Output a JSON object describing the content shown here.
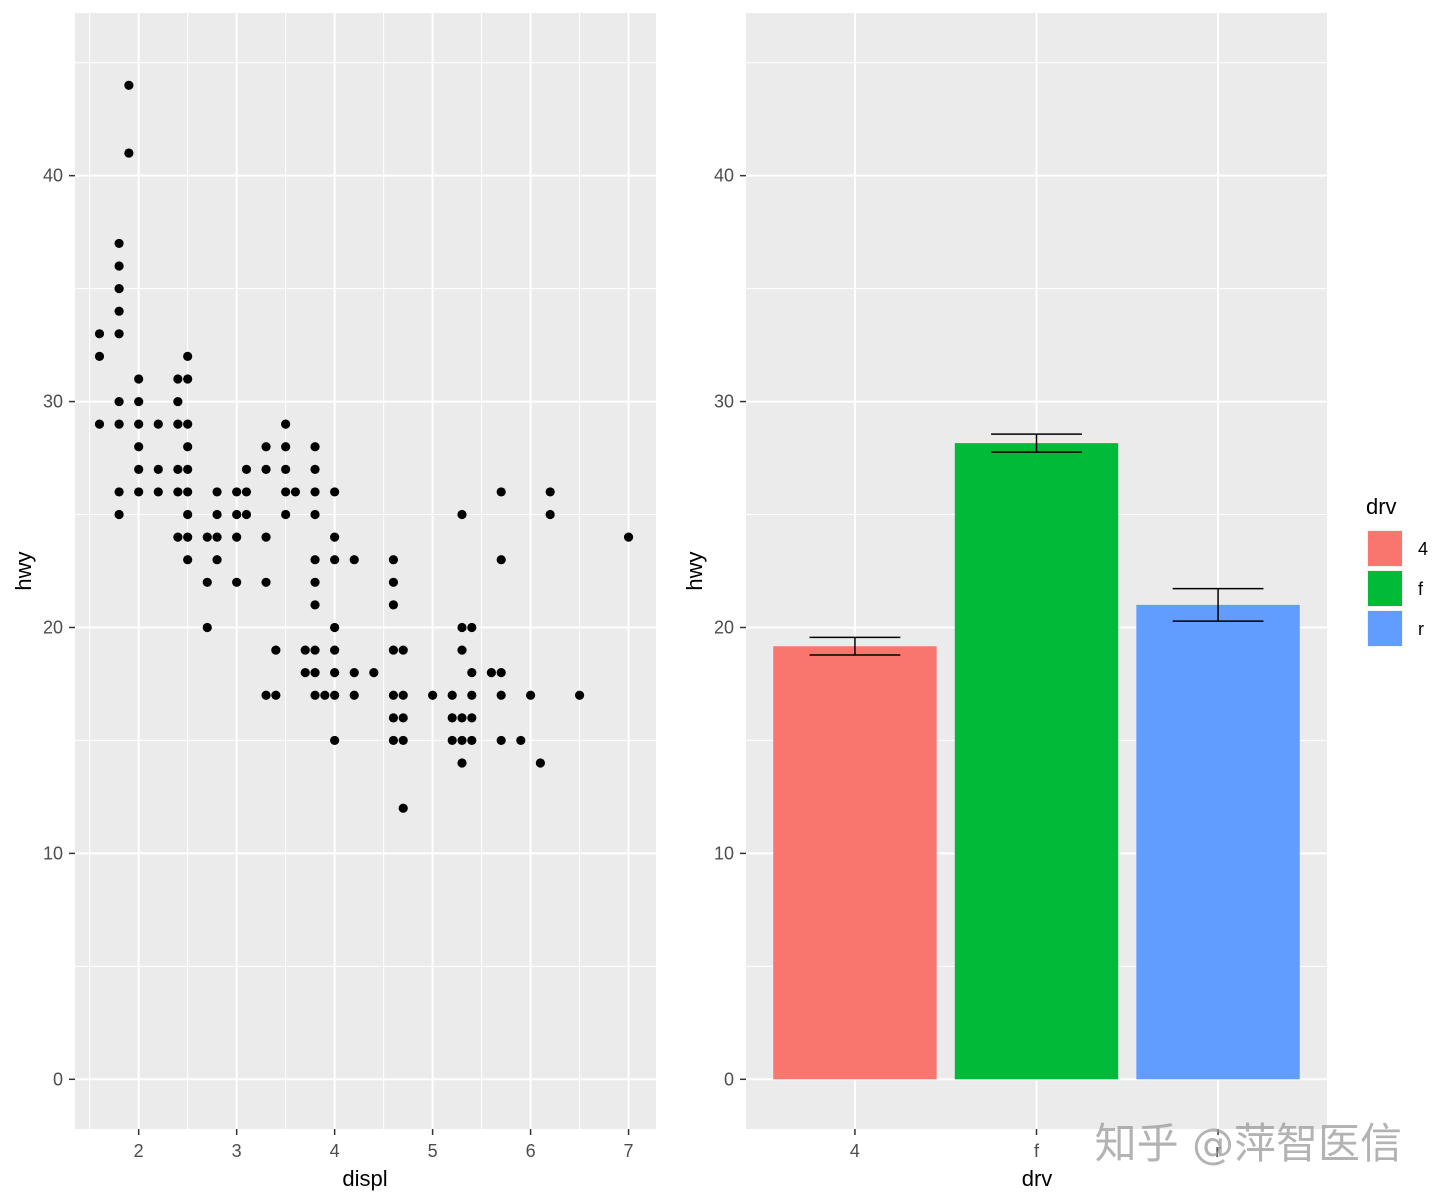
{
  "watermark": "知乎 @萍智医信",
  "chart_data": [
    {
      "type": "scatter",
      "xlabel": "displ",
      "ylabel": "hwy",
      "xlim": [
        1.35,
        7.28
      ],
      "ylim": [
        -2.2,
        47.2
      ],
      "xticks": [
        2,
        3,
        4,
        5,
        6,
        7
      ],
      "yticks": [
        0,
        10,
        20,
        30,
        40
      ],
      "grid": true,
      "point_color": "#000000",
      "points": [
        [
          1.9,
          44
        ],
        [
          1.9,
          41
        ],
        [
          1.8,
          37
        ],
        [
          1.8,
          36
        ],
        [
          1.8,
          35
        ],
        [
          1.8,
          34
        ],
        [
          1.8,
          33
        ],
        [
          1.8,
          30
        ],
        [
          1.8,
          29
        ],
        [
          1.8,
          26
        ],
        [
          1.8,
          25
        ],
        [
          1.6,
          33
        ],
        [
          1.6,
          32
        ],
        [
          1.6,
          29
        ],
        [
          2.0,
          31
        ],
        [
          2.0,
          30
        ],
        [
          2.0,
          29
        ],
        [
          2.0,
          28
        ],
        [
          2.0,
          27
        ],
        [
          2.0,
          26
        ],
        [
          2.2,
          29
        ],
        [
          2.2,
          27
        ],
        [
          2.2,
          26
        ],
        [
          2.4,
          31
        ],
        [
          2.4,
          30
        ],
        [
          2.4,
          29
        ],
        [
          2.4,
          27
        ],
        [
          2.4,
          26
        ],
        [
          2.4,
          24
        ],
        [
          2.5,
          32
        ],
        [
          2.5,
          31
        ],
        [
          2.5,
          29
        ],
        [
          2.5,
          28
        ],
        [
          2.5,
          27
        ],
        [
          2.5,
          26
        ],
        [
          2.5,
          25
        ],
        [
          2.5,
          24
        ],
        [
          2.5,
          23
        ],
        [
          2.7,
          24
        ],
        [
          2.7,
          22
        ],
        [
          2.7,
          20
        ],
        [
          2.8,
          26
        ],
        [
          2.8,
          25
        ],
        [
          2.8,
          24
        ],
        [
          2.8,
          23
        ],
        [
          3.0,
          26
        ],
        [
          3.0,
          25
        ],
        [
          3.0,
          24
        ],
        [
          3.0,
          22
        ],
        [
          3.1,
          27
        ],
        [
          3.1,
          26
        ],
        [
          3.1,
          25
        ],
        [
          3.3,
          28
        ],
        [
          3.3,
          27
        ],
        [
          3.3,
          24
        ],
        [
          3.3,
          22
        ],
        [
          3.3,
          17
        ],
        [
          3.4,
          19
        ],
        [
          3.4,
          17
        ],
        [
          3.5,
          29
        ],
        [
          3.5,
          28
        ],
        [
          3.5,
          27
        ],
        [
          3.5,
          26
        ],
        [
          3.5,
          25
        ],
        [
          3.6,
          26
        ],
        [
          3.7,
          19
        ],
        [
          3.7,
          18
        ],
        [
          3.8,
          28
        ],
        [
          3.8,
          27
        ],
        [
          3.8,
          26
        ],
        [
          3.8,
          25
        ],
        [
          3.8,
          23
        ],
        [
          3.8,
          22
        ],
        [
          3.8,
          21
        ],
        [
          3.8,
          19
        ],
        [
          3.8,
          18
        ],
        [
          3.8,
          17
        ],
        [
          3.9,
          17
        ],
        [
          4.0,
          26
        ],
        [
          4.0,
          24
        ],
        [
          4.0,
          23
        ],
        [
          4.0,
          20
        ],
        [
          4.0,
          19
        ],
        [
          4.0,
          18
        ],
        [
          4.0,
          17
        ],
        [
          4.0,
          15
        ],
        [
          4.2,
          23
        ],
        [
          4.2,
          18
        ],
        [
          4.2,
          17
        ],
        [
          4.4,
          18
        ],
        [
          4.6,
          23
        ],
        [
          4.6,
          22
        ],
        [
          4.6,
          21
        ],
        [
          4.6,
          19
        ],
        [
          4.6,
          17
        ],
        [
          4.6,
          16
        ],
        [
          4.6,
          15
        ],
        [
          4.7,
          19
        ],
        [
          4.7,
          17
        ],
        [
          4.7,
          16
        ],
        [
          4.7,
          15
        ],
        [
          4.7,
          12
        ],
        [
          5.0,
          17
        ],
        [
          5.2,
          17
        ],
        [
          5.2,
          16
        ],
        [
          5.2,
          15
        ],
        [
          5.3,
          25
        ],
        [
          5.3,
          20
        ],
        [
          5.3,
          19
        ],
        [
          5.3,
          16
        ],
        [
          5.3,
          15
        ],
        [
          5.3,
          14
        ],
        [
          5.4,
          20
        ],
        [
          5.4,
          18
        ],
        [
          5.4,
          17
        ],
        [
          5.4,
          16
        ],
        [
          5.4,
          15
        ],
        [
          5.6,
          18
        ],
        [
          5.7,
          26
        ],
        [
          5.7,
          23
        ],
        [
          5.7,
          18
        ],
        [
          5.7,
          17
        ],
        [
          5.7,
          15
        ],
        [
          5.9,
          15
        ],
        [
          6.0,
          17
        ],
        [
          6.1,
          14
        ],
        [
          6.2,
          26
        ],
        [
          6.2,
          25
        ],
        [
          6.5,
          17
        ],
        [
          7.0,
          24
        ]
      ]
    },
    {
      "type": "bar",
      "xlabel": "drv",
      "ylabel": "hwy",
      "ylim": [
        -2.2,
        47.2
      ],
      "yticks": [
        0,
        10,
        20,
        30,
        40
      ],
      "grid": true,
      "categories": [
        "4",
        "f",
        "r"
      ],
      "values": [
        19.17,
        28.16,
        21.0
      ],
      "error_bars": [
        [
          18.78,
          19.56
        ],
        [
          27.76,
          28.56
        ],
        [
          20.28,
          21.72
        ]
      ],
      "colors": [
        "#F8766D",
        "#00BA38",
        "#619CFF"
      ],
      "legend": {
        "title": "drv",
        "position": "right",
        "entries": [
          "4",
          "f",
          "r"
        ]
      }
    }
  ]
}
